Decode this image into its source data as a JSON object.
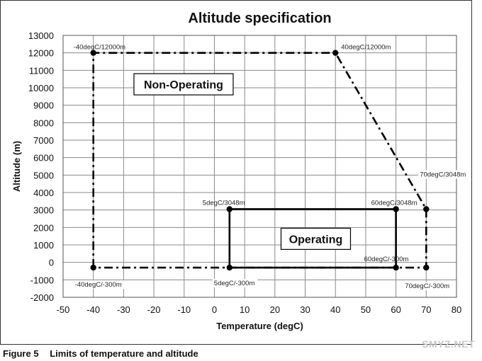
{
  "caption": {
    "number": "Figure 5",
    "text": "Limits of temperature and altitude"
  },
  "watermark": "SMYZ.NET",
  "chart_data": {
    "type": "line",
    "title": "Altitude specification",
    "xlabel": "Temperature (degC)",
    "ylabel": "Altitude (m)",
    "xlim": [
      -50,
      80
    ],
    "ylim": [
      -2000,
      13000
    ],
    "xticks": [
      -50,
      -40,
      -30,
      -20,
      -10,
      0,
      10,
      20,
      30,
      40,
      50,
      60,
      70,
      80
    ],
    "yticks": [
      -2000,
      -1000,
      0,
      1000,
      2000,
      3000,
      4000,
      5000,
      6000,
      7000,
      8000,
      9000,
      10000,
      11000,
      12000,
      13000
    ],
    "grid": true,
    "series": [
      {
        "name": "Non-Operating",
        "style": "dash-dot",
        "color": "#000000",
        "points": [
          {
            "x": -40,
            "y": -300
          },
          {
            "x": -40,
            "y": 12000
          },
          {
            "x": 40,
            "y": 12000
          },
          {
            "x": 70,
            "y": 3048
          },
          {
            "x": 70,
            "y": -300
          },
          {
            "x": -40,
            "y": -300
          }
        ]
      },
      {
        "name": "Operating",
        "style": "solid",
        "color": "#000000",
        "points": [
          {
            "x": 5,
            "y": -300
          },
          {
            "x": 5,
            "y": 3048
          },
          {
            "x": 60,
            "y": 3048
          },
          {
            "x": 60,
            "y": -300
          },
          {
            "x": 5,
            "y": -300
          }
        ]
      }
    ],
    "point_labels": [
      {
        "text": "-40degC/12000m",
        "x": -40,
        "y": 12000
      },
      {
        "text": "40degC/12000m",
        "x": 40,
        "y": 12000
      },
      {
        "text": "70degC/3048m",
        "x": 70,
        "y": 3048
      },
      {
        "text": "5degC/3048m",
        "x": 5,
        "y": 3048
      },
      {
        "text": "60degC/3048m",
        "x": 60,
        "y": 3048
      },
      {
        "text": "60degC/-300m",
        "x": 60,
        "y": -300
      },
      {
        "text": "-40degC/-300m",
        "x": -40,
        "y": -300
      },
      {
        "text": "5degC/-300m",
        "x": 5,
        "y": -300
      },
      {
        "text": "70degC/-300m",
        "x": 70,
        "y": -300
      }
    ]
  }
}
